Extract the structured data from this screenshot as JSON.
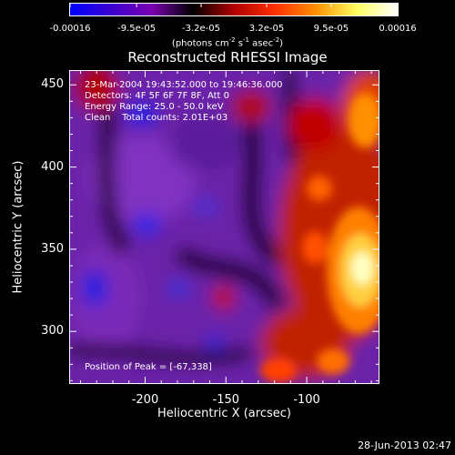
{
  "chart_data": {
    "type": "heatmap",
    "title": "Reconstructed RHESSI Image",
    "xlabel": "Heliocentric X (arcsec)",
    "ylabel": "Heliocentric Y (arcsec)",
    "x_ticks": [
      "-200",
      "-150",
      "-100"
    ],
    "x_tick_values": [
      -200,
      -150,
      -100
    ],
    "y_ticks": [
      "450",
      "400",
      "350",
      "300"
    ],
    "y_tick_values": [
      450,
      400,
      350,
      300
    ],
    "xlim": [
      -247,
      -55
    ],
    "ylim": [
      268,
      459
    ],
    "colorbar": {
      "ticks": [
        "-0.00016",
        "-9.5e-05",
        "-3.2e-05",
        "3.2e-05",
        "9.5e-05",
        "0.00016"
      ],
      "tick_values": [
        -0.00016,
        -9.5e-05,
        -3.2e-05,
        3.2e-05,
        9.5e-05,
        0.00016
      ],
      "range": [
        -0.00016,
        0.00016
      ],
      "units": "(photons cm",
      "units_parts": [
        "(photons cm",
        "-2",
        " s",
        "-1",
        " asec",
        "-2",
        ")"
      ],
      "colors": [
        "#0000ff",
        "#3b00d0",
        "#7a00b0",
        "#000000",
        "#b00000",
        "#ff3000",
        "#ff9000",
        "#ffff60",
        "#ffffff"
      ]
    },
    "annotations": [
      "23-Mar-2004 19:43:52.000 to 19:46:36.000",
      "Detectors: 4F 5F 6F 7F 8F, Att 0",
      "Energy Range: 25.0 - 50.0 keV",
      "Clean    Total counts: 2.01E+03"
    ],
    "peak_label": "Position of Peak = [-67,338]",
    "peak": {
      "x": -67,
      "y": 338
    },
    "footer_date": "28-Jun-2013 02:47"
  }
}
